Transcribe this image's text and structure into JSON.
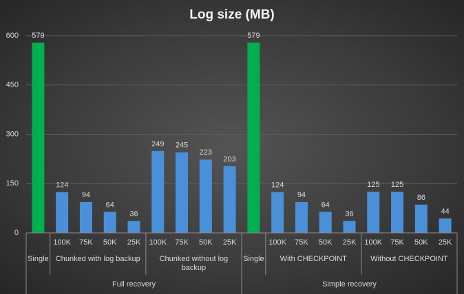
{
  "chart_data": {
    "type": "bar",
    "title": "Log size (MB)",
    "ylim": [
      0,
      600
    ],
    "yticks": [
      0,
      150,
      300,
      450,
      600
    ],
    "grid": true,
    "data_labels": true,
    "groups": [
      {
        "name": "Full recovery",
        "subgroups": [
          {
            "name": "Single",
            "categories": [
              null
            ],
            "values": [
              579
            ],
            "color": "#00b050"
          },
          {
            "name": "Chunked with log backup",
            "categories": [
              "100K",
              "75K",
              "50K",
              "25K"
            ],
            "values": [
              124,
              94,
              64,
              36
            ],
            "color": "#4a90d9"
          },
          {
            "name": "Chunked without log backup",
            "categories": [
              "100K",
              "75K",
              "50K",
              "25K"
            ],
            "values": [
              249,
              245,
              223,
              203
            ],
            "color": "#4a90d9"
          }
        ]
      },
      {
        "name": "Simple recovery",
        "subgroups": [
          {
            "name": "Single",
            "categories": [
              null
            ],
            "values": [
              579
            ],
            "color": "#00b050"
          },
          {
            "name": "With CHECKPOINT",
            "categories": [
              "100K",
              "75K",
              "50K",
              "25K"
            ],
            "values": [
              124,
              94,
              64,
              36
            ],
            "color": "#4a90d9"
          },
          {
            "name": "Without CHECKPOINT",
            "categories": [
              "100K",
              "75K",
              "50K",
              "25K"
            ],
            "values": [
              125,
              125,
              86,
              44
            ],
            "color": "#4a90d9"
          }
        ]
      }
    ]
  }
}
